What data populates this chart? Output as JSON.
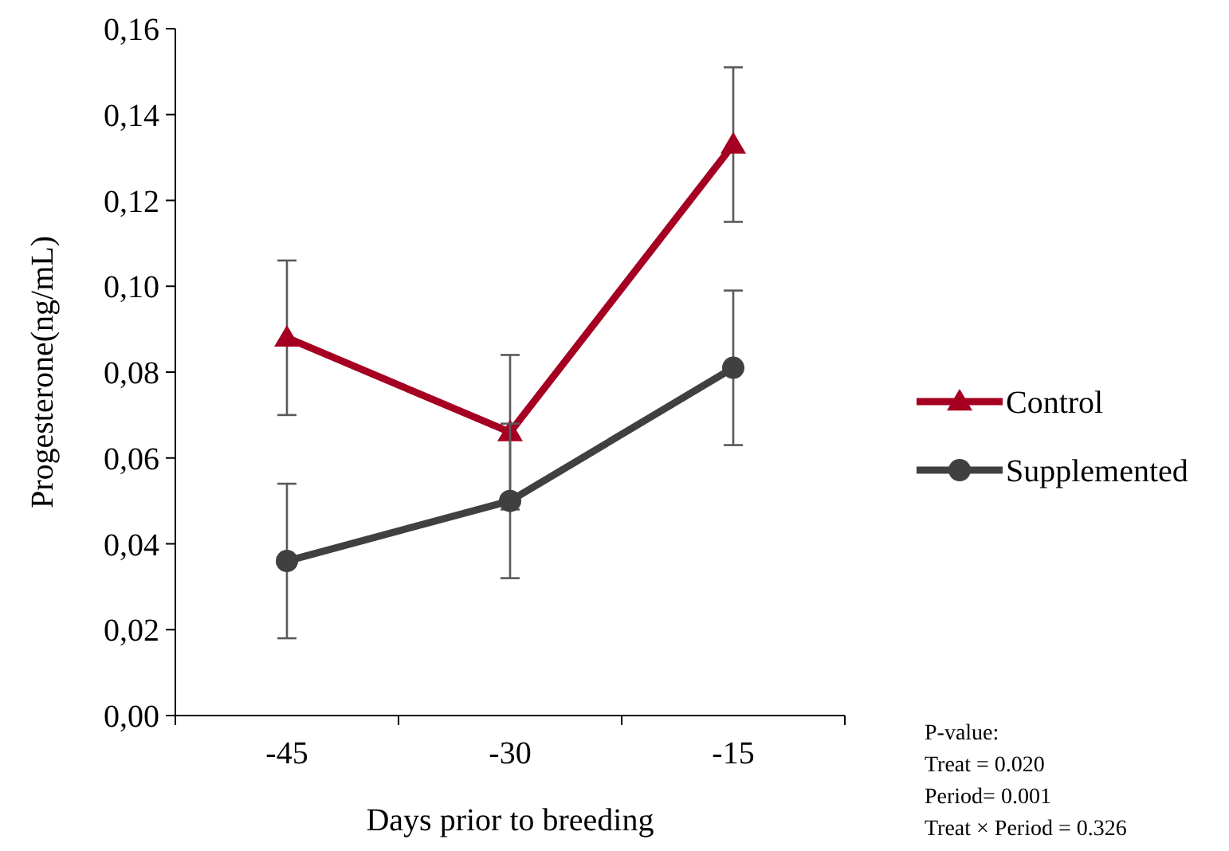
{
  "chart_data": {
    "type": "line",
    "xlabel": "Days prior to breeding",
    "ylabel": "Progesterone(ng/mL)",
    "categories": [
      "-45",
      "-30",
      "-15"
    ],
    "series": [
      {
        "name": "Control",
        "color": "#a50021",
        "values": [
          0.088,
          0.066,
          0.133
        ],
        "errors": [
          0.018,
          0.018,
          0.018
        ],
        "marker": "triangle"
      },
      {
        "name": "Supplemented",
        "color": "#404040",
        "values": [
          0.036,
          0.05,
          0.081
        ],
        "errors": [
          0.018,
          0.018,
          0.018
        ],
        "marker": "circle"
      }
    ],
    "ylim": [
      0,
      0.16
    ],
    "yticks": [
      {
        "value": 0,
        "label": "0,00"
      },
      {
        "value": 0.02,
        "label": "0,02"
      },
      {
        "value": 0.04,
        "label": "0,04"
      },
      {
        "value": 0.06,
        "label": "0,06"
      },
      {
        "value": 0.08,
        "label": "0,08"
      },
      {
        "value": 0.1,
        "label": "0,10"
      },
      {
        "value": 0.12,
        "label": "0,12"
      },
      {
        "value": 0.14,
        "label": "0,14"
      },
      {
        "value": 0.16,
        "label": "0,16"
      }
    ],
    "grid": false,
    "legend": "right",
    "line_style": "solid",
    "annotations": [
      "P-value:",
      "Treat = 0.020",
      "Period=  0.001",
      "Treat × Period = 0.326"
    ]
  }
}
